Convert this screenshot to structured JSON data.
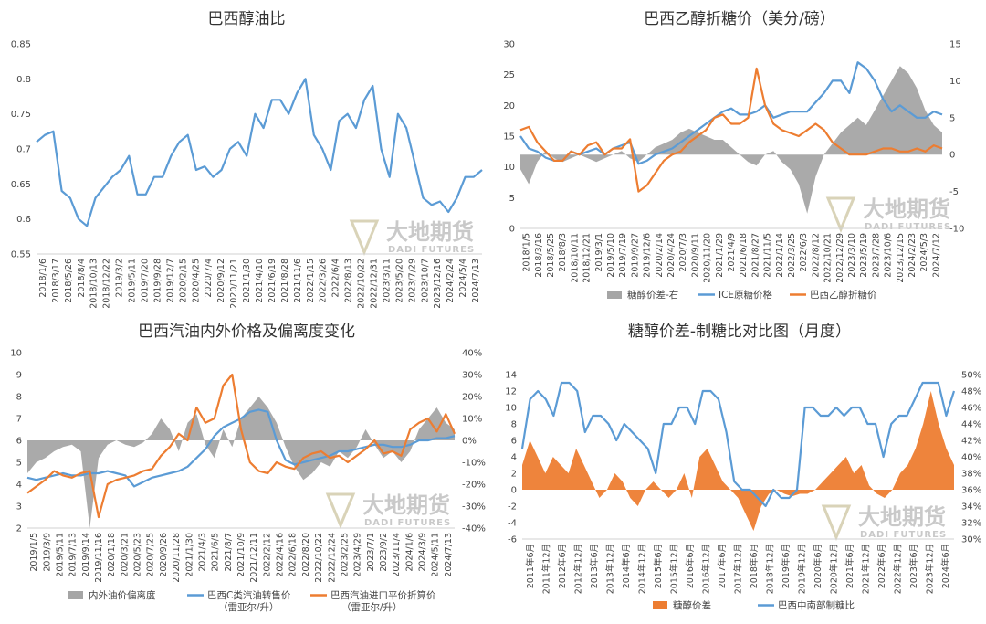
{
  "watermark": {
    "cn": "大地期货",
    "en": "DADI FUTURES"
  },
  "chart_data": [
    {
      "type": "line",
      "title": "巴西醇油比",
      "ylim": [
        0.55,
        0.85
      ],
      "yticks": [
        "0.55",
        "0.6",
        "0.65",
        "0.7",
        "0.75",
        "0.8",
        "0.85"
      ],
      "xticks": [
        "2018/1/6",
        "2018/3/17",
        "2018/5/26",
        "2018/8/4",
        "2018/10/13",
        "2018/12/22",
        "2019/3/2",
        "2019/5/11",
        "2019/7/20",
        "2019/9/28",
        "2019/12/7",
        "2020/2/15",
        "2020/4/25",
        "2020/7/4",
        "2020/9/12",
        "2020/11/21",
        "2021/1/30",
        "2021/4/10",
        "2021/6/19",
        "2021/8/28",
        "2021/11/6",
        "2022/1/15",
        "2022/3/26",
        "2022/6/4",
        "2022/8/13",
        "2022/10/22",
        "2022/12/31",
        "2023/3/11",
        "2023/5/20",
        "2023/7/29",
        "2023/10/7",
        "2023/12/16",
        "2024/2/24",
        "2024/5/4",
        "2024/7/13"
      ],
      "series": [
        {
          "name": "",
          "color": "#5b9bd5",
          "values": [
            0.71,
            0.72,
            0.725,
            0.64,
            0.63,
            0.6,
            0.59,
            0.63,
            0.645,
            0.66,
            0.67,
            0.69,
            0.635,
            0.635,
            0.66,
            0.66,
            0.69,
            0.71,
            0.72,
            0.67,
            0.675,
            0.66,
            0.67,
            0.7,
            0.71,
            0.69,
            0.75,
            0.73,
            0.77,
            0.77,
            0.75,
            0.78,
            0.8,
            0.72,
            0.7,
            0.67,
            0.74,
            0.75,
            0.73,
            0.77,
            0.79,
            0.7,
            0.66,
            0.75,
            0.73,
            0.68,
            0.63,
            0.62,
            0.625,
            0.61,
            0.63,
            0.66,
            0.66,
            0.67
          ]
        }
      ]
    },
    {
      "type": "line",
      "title": "巴西乙醇折糖价（美分/磅）",
      "ylim": [
        0,
        30
      ],
      "yticks": [
        "0",
        "5",
        "10",
        "15",
        "20",
        "25",
        "30"
      ],
      "y2lim": [
        -10,
        15
      ],
      "y2ticks": [
        "-10",
        "-5",
        "0",
        "5",
        "10",
        "15"
      ],
      "xticks": [
        "2018/1/5",
        "2018/3/16",
        "2018/5/25",
        "2018/8/3",
        "2018/10/11",
        "2018/12/21",
        "2019/3/1",
        "2019/5/10",
        "2019/7/19",
        "2019/9/27",
        "2019/12/6",
        "2020/2/14",
        "2020/4/24",
        "2020/7/3",
        "2020/9/11",
        "2020/11/20",
        "2021/1/29",
        "2021/4/9",
        "2021/6/18",
        "2021/8/27",
        "2021/11/5",
        "2022/1/14",
        "2022/3/25",
        "2022/6/3",
        "2022/8/12",
        "2022/10/21",
        "2022/12/29",
        "2023/3/10",
        "2023/5/19",
        "2023/7/28",
        "2023/10/6",
        "2023/12/15",
        "2024/2/23",
        "2024/5/3",
        "2024/7/12"
      ],
      "legend": [
        "糖醇价差-右",
        "ICE原糖价格",
        "巴西乙醇折糖价"
      ],
      "series": [
        {
          "name": "糖醇价差-右",
          "type": "area",
          "axis": "right",
          "color": "#a5a5a5",
          "values": [
            -2,
            -4,
            -1,
            0.5,
            -0.5,
            -1,
            -0.5,
            0,
            -0.5,
            -1,
            -0.5,
            0,
            0.5,
            -0.5,
            -1,
            0,
            1,
            1.5,
            2,
            3,
            3.5,
            3,
            2.5,
            2,
            2,
            1,
            0,
            -1,
            -1.5,
            0,
            0.5,
            -1,
            -2,
            -4,
            -8,
            -3,
            0,
            1.5,
            3,
            4,
            5,
            4,
            6,
            8,
            10,
            12,
            11,
            9,
            6,
            4,
            3
          ]
        },
        {
          "name": "ICE原糖价格",
          "type": "line",
          "axis": "left",
          "color": "#5b9bd5",
          "values": [
            15,
            13,
            12.5,
            11.5,
            11,
            11,
            12.5,
            12,
            12.5,
            13,
            12,
            13,
            13.5,
            14,
            10.5,
            11,
            12,
            12.5,
            13,
            14,
            15,
            16,
            17,
            18,
            19,
            19.5,
            18.5,
            18.5,
            19,
            20,
            18,
            18.5,
            19,
            19,
            19,
            20.5,
            22,
            24,
            24,
            22,
            27,
            26,
            24,
            21,
            19,
            20,
            19,
            18,
            18,
            19,
            18.5
          ]
        },
        {
          "name": "巴西乙醇折糖价",
          "type": "line",
          "axis": "left",
          "color": "#ed7d31",
          "values": [
            16,
            16.5,
            14,
            12.5,
            11,
            11,
            12.5,
            12,
            13.5,
            14,
            12,
            13,
            13,
            14.5,
            6,
            7,
            9,
            11,
            12,
            12.5,
            14,
            15,
            16,
            18,
            18.5,
            17,
            17,
            18,
            26,
            20,
            17,
            16,
            15.5,
            15,
            16,
            17,
            16,
            14,
            13,
            12,
            12,
            12,
            12.5,
            13,
            13,
            12.5,
            12.5,
            13,
            12.5,
            13.5,
            13
          ]
        }
      ]
    },
    {
      "type": "line",
      "title": "巴西汽油内外价格及偏离度变化",
      "ylim": [
        2,
        10
      ],
      "yticks": [
        "2",
        "3",
        "4",
        "5",
        "6",
        "7",
        "8",
        "9",
        "10"
      ],
      "y2lim": [
        -40,
        40
      ],
      "y2ticks": [
        "-40%",
        "-30%",
        "-20%",
        "-10%",
        "0%",
        "10%",
        "20%",
        "30%",
        "40%"
      ],
      "xticks": [
        "2019/1/5",
        "2019/3/9",
        "2019/5/11",
        "2019/7/13",
        "2019/9/14",
        "2019/11/16",
        "2020/1/18",
        "2020/3/21",
        "2020/5/23",
        "2020/7/25",
        "2020/9/26",
        "2020/11/28",
        "2021/1/30",
        "2021/4/3",
        "2021/6/5",
        "2021/8/7",
        "2021/10/9",
        "2021/12/11",
        "2022/2/12",
        "2022/4/16",
        "2022/6/18",
        "2022/8/20",
        "2022/10/22",
        "2022/12/24",
        "2023/2/25",
        "2023/4/29",
        "2023/7/1",
        "2023/9/2",
        "2023/11/4",
        "2024/1/6",
        "2024/3/9",
        "2024/5/11",
        "2024/7/13"
      ],
      "legend": [
        "内外油价偏离度",
        "巴西C类汽油转售价（雷亚尔/升）",
        "巴西汽油进口平价折算价（雷亚尔/升）"
      ],
      "series": [
        {
          "name": "内外油价偏离度",
          "type": "area",
          "axis": "right",
          "color": "#a5a5a5",
          "values": [
            -15,
            -10,
            -8,
            -5,
            -3,
            -2,
            -5,
            -40,
            -8,
            -2,
            0,
            -2,
            -3,
            -1,
            3,
            10,
            5,
            -5,
            8,
            12,
            -2,
            -8,
            5,
            -3,
            10,
            15,
            20,
            15,
            8,
            -3,
            -12,
            -18,
            -15,
            -10,
            -12,
            -5,
            -8,
            -3,
            5,
            -2,
            -8,
            -5,
            -10,
            -5,
            5,
            10,
            15,
            8,
            5
          ]
        },
        {
          "name": "巴西C类汽油转售价（雷亚尔/升）",
          "type": "line",
          "axis": "left",
          "color": "#5b9bd5",
          "values": [
            4.3,
            4.2,
            4.3,
            4.4,
            4.5,
            4.4,
            4.4,
            4.5,
            4.5,
            4.6,
            4.5,
            4.4,
            3.9,
            4.1,
            4.3,
            4.4,
            4.5,
            4.6,
            4.8,
            5.2,
            5.6,
            6.2,
            6.6,
            6.8,
            7.0,
            7.3,
            7.4,
            7.3,
            6.0,
            5.1,
            4.9,
            5.0,
            5.1,
            5.2,
            5.3,
            5.5,
            5.5,
            5.6,
            5.7,
            5.8,
            5.8,
            5.7,
            5.7,
            5.8,
            6.0,
            6.0,
            6.1,
            6.1,
            6.2
          ]
        },
        {
          "name": "巴西汽油进口平价折算价（雷亚尔/升）",
          "type": "line",
          "axis": "left",
          "color": "#ed7d31",
          "values": [
            3.6,
            3.9,
            4.2,
            4.6,
            4.4,
            4.3,
            4.5,
            4.6,
            2.5,
            4.0,
            4.2,
            4.3,
            4.4,
            4.6,
            4.7,
            5.3,
            5.7,
            6.3,
            6.0,
            7.5,
            6.8,
            7.0,
            8.5,
            9.0,
            6.5,
            5.0,
            4.6,
            4.5,
            5.0,
            4.8,
            4.7,
            5.2,
            5.4,
            5.5,
            5.2,
            5.3,
            5.0,
            5.3,
            5.6,
            6.0,
            5.4,
            5.5,
            5.3,
            6.5,
            6.8,
            7.0,
            6.4,
            7.2,
            6.3
          ]
        }
      ]
    },
    {
      "type": "line",
      "title": "糖醇价差-制糖比对比图（月度）",
      "ylim": [
        -6,
        14
      ],
      "yticks": [
        "-6",
        "-4",
        "-2",
        "0",
        "2",
        "4",
        "6",
        "8",
        "10",
        "12",
        "14"
      ],
      "y2lim": [
        30,
        50
      ],
      "y2ticks": [
        "30%",
        "32%",
        "34%",
        "36%",
        "38%",
        "40%",
        "42%",
        "44%",
        "46%",
        "48%",
        "50%"
      ],
      "xticks": [
        "2011年6月",
        "2011年12月",
        "2012年6月",
        "2012年12月",
        "2013年6月",
        "2013年12月",
        "2014年6月",
        "2014年12月",
        "2015年6月",
        "2015年12月",
        "2016年6月",
        "2016年12月",
        "2017年6月",
        "2017年12月",
        "2018年6月",
        "2018年12月",
        "2019年6月",
        "2019年12月",
        "2020年6月",
        "2020年12月",
        "2021年6月",
        "2021年12月",
        "2022年6月",
        "2022年12月",
        "2023年6月",
        "2023年12月",
        "2024年6月"
      ],
      "legend": [
        "糖醇价差",
        "巴西中南部制糖比"
      ],
      "series": [
        {
          "name": "糖醇价差",
          "type": "area",
          "axis": "left",
          "color": "#ed7d31",
          "values": [
            3,
            6,
            4,
            2,
            4,
            3,
            2,
            5,
            3,
            1,
            -1,
            0,
            2,
            1,
            -1,
            -2,
            0,
            1,
            0,
            -1,
            0,
            2,
            -1,
            4,
            5,
            3,
            1,
            0,
            -1,
            -3,
            -5,
            -2,
            -0.5,
            0,
            -0.5,
            -0.8,
            -0.5,
            -0.5,
            0,
            1,
            2,
            3,
            4,
            2,
            3,
            0.5,
            -0.5,
            -1,
            0,
            2,
            3,
            5,
            8,
            12,
            8,
            5,
            3
          ]
        },
        {
          "name": "巴西中南部制糖比",
          "type": "line",
          "axis": "right",
          "color": "#5b9bd5",
          "values": [
            41,
            47,
            48,
            47,
            45,
            49,
            49,
            48,
            43,
            45,
            45,
            44,
            42,
            44,
            43,
            42,
            41,
            38,
            44,
            44,
            46,
            46,
            44,
            48,
            48,
            47,
            43,
            37,
            36,
            36,
            35,
            34,
            36,
            35,
            35,
            36,
            46,
            46,
            45,
            45,
            46,
            45,
            46,
            46,
            44,
            44,
            40,
            44,
            45,
            45,
            47,
            49,
            49,
            49,
            45,
            48
          ]
        }
      ]
    }
  ]
}
